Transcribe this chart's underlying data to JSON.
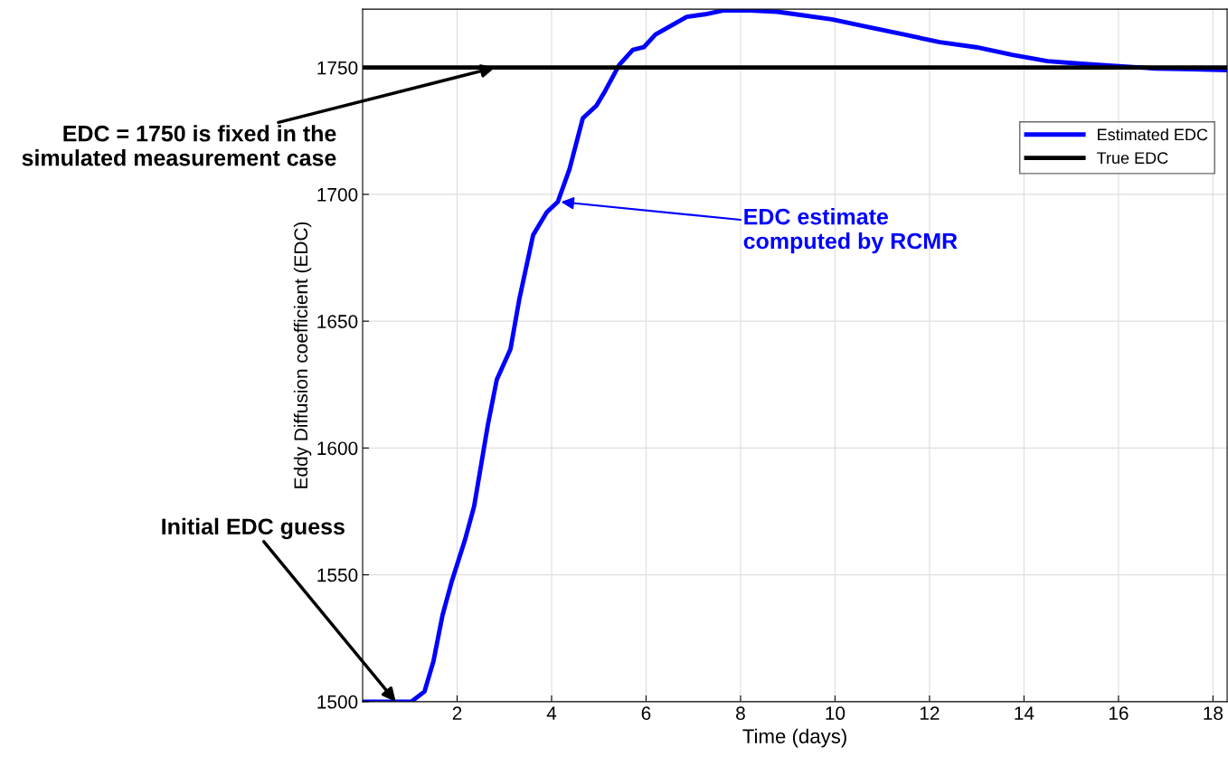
{
  "chart_data": {
    "type": "line",
    "xlabel": "Time (days)",
    "ylabel": "Eddy Diffusion coefficient (EDC)",
    "xlim": [
      0,
      18.3
    ],
    "ylim": [
      1500,
      1773
    ],
    "xticks": [
      2,
      4,
      6,
      8,
      10,
      12,
      14,
      16,
      18
    ],
    "yticks": [
      1500,
      1550,
      1600,
      1650,
      1700,
      1750
    ],
    "grid": true,
    "legend": "right",
    "series": [
      {
        "name": "Estimated EDC",
        "color": "#0000ff",
        "x": [
          0,
          1.03,
          1.31,
          1.5,
          1.69,
          1.88,
          2.17,
          2.36,
          2.65,
          2.84,
          3.13,
          3.32,
          3.61,
          3.9,
          4.13,
          4.38,
          4.66,
          4.95,
          5.14,
          5.43,
          5.72,
          5.95,
          6.2,
          6.48,
          6.86,
          7.25,
          7.63,
          8.2,
          8.78,
          9.16,
          9.93,
          10.7,
          11.46,
          12.22,
          12.99,
          13.75,
          14.5,
          15.28,
          16.8,
          17.57,
          18.3
        ],
        "values": [
          1500,
          1500,
          1504,
          1516,
          1534,
          1547,
          1564,
          1577,
          1609,
          1627,
          1639,
          1659,
          1684,
          1693,
          1697,
          1710,
          1730,
          1735,
          1741,
          1751,
          1757,
          1758,
          1763,
          1766,
          1770,
          1771,
          1772.5,
          1772.5,
          1772,
          1771,
          1769,
          1766,
          1763,
          1760,
          1758,
          1755,
          1752.5,
          1751.4,
          1749.6,
          1749.3,
          1749
        ]
      },
      {
        "name": "True EDC",
        "color": "#000000",
        "x": [
          0,
          18.3
        ],
        "values": [
          1750,
          1750
        ]
      }
    ],
    "annotations": [
      {
        "text": "EDC = 1750 is fixed in the\nsimulated measurement case",
        "x": 2.8,
        "y": 1750
      },
      {
        "text": "EDC estimate\ncomputed by RCMR",
        "x": 4.2,
        "y": 1697
      },
      {
        "text": "Initial EDC guess",
        "x": 0.7,
        "y": 1500
      }
    ]
  }
}
